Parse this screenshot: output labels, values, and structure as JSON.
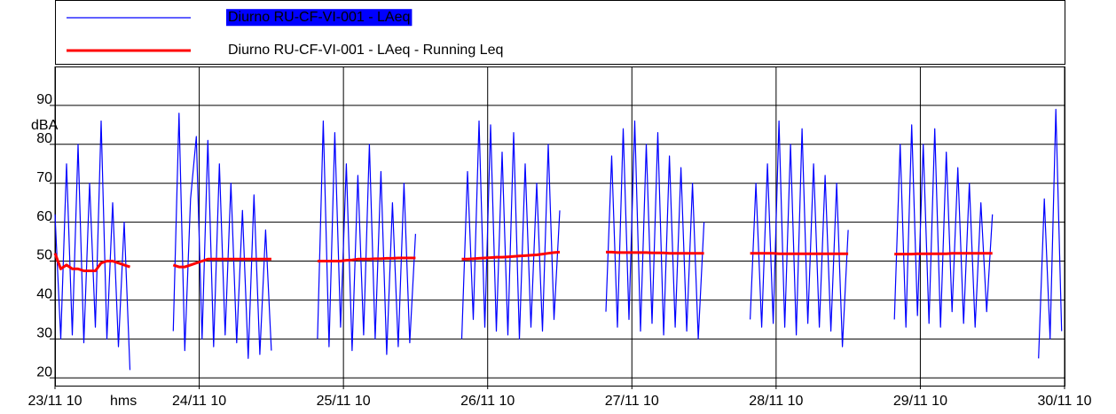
{
  "chart_data": {
    "type": "line",
    "ylabel": "dBA",
    "xlabel": "hms",
    "xlim": [
      0,
      7
    ],
    "ylim": [
      18,
      100
    ],
    "xticks": [
      {
        "value": 0,
        "label": "23/11 10"
      },
      {
        "value": 1,
        "label": "24/11 10"
      },
      {
        "value": 2,
        "label": "25/11 10"
      },
      {
        "value": 3,
        "label": "26/11 10"
      },
      {
        "value": 4,
        "label": "27/11 10"
      },
      {
        "value": 5,
        "label": "28/11 10"
      },
      {
        "value": 6,
        "label": "29/11 10"
      },
      {
        "value": 7,
        "label": "30/11 10"
      }
    ],
    "yticks": [
      20,
      30,
      40,
      50,
      60,
      70,
      80,
      90
    ],
    "grid": true,
    "legend": "top",
    "x": [
      0,
      0.04,
      0.08,
      0.12,
      0.16,
      0.2,
      0.24,
      0.28,
      0.32,
      0.36,
      0.4,
      0.44,
      0.48,
      0.52,
      0.67,
      0.82,
      0.86,
      0.9,
      0.94,
      0.98,
      1.02,
      1.06,
      1.1,
      1.14,
      1.18,
      1.22,
      1.26,
      1.3,
      1.34,
      1.38,
      1.42,
      1.46,
      1.5,
      1.66,
      1.82,
      1.86,
      1.9,
      1.94,
      1.98,
      2.02,
      2.06,
      2.1,
      2.14,
      2.18,
      2.22,
      2.26,
      2.3,
      2.34,
      2.38,
      2.42,
      2.46,
      2.5,
      2.66,
      2.82,
      2.86,
      2.9,
      2.94,
      2.98,
      3.02,
      3.06,
      3.1,
      3.14,
      3.18,
      3.22,
      3.26,
      3.3,
      3.34,
      3.38,
      3.42,
      3.46,
      3.5,
      3.66,
      3.82,
      3.86,
      3.9,
      3.94,
      3.98,
      4.02,
      4.06,
      4.1,
      4.14,
      4.18,
      4.22,
      4.26,
      4.3,
      4.34,
      4.38,
      4.42,
      4.46,
      4.5,
      4.66,
      4.82,
      4.86,
      4.9,
      4.94,
      4.98,
      5.02,
      5.06,
      5.1,
      5.14,
      5.18,
      5.22,
      5.26,
      5.3,
      5.34,
      5.38,
      5.42,
      5.46,
      5.5,
      5.66,
      5.82,
      5.86,
      5.9,
      5.94,
      5.98,
      6.02,
      6.06,
      6.1,
      6.14,
      6.18,
      6.22,
      6.26,
      6.3,
      6.34,
      6.38,
      6.42,
      6.46,
      6.5,
      6.66,
      6.82,
      6.86,
      6.9,
      6.94,
      6.98
    ],
    "series": [
      {
        "name": "Diurno RU-CF-VI-001 - LAeq",
        "color": "#0000ff",
        "values": [
          62,
          30,
          75,
          31,
          80,
          29,
          70,
          33,
          86,
          30,
          65,
          28,
          60,
          22,
          null,
          32,
          88,
          27,
          66,
          82,
          30,
          81,
          28,
          75,
          31,
          70,
          29,
          63,
          25,
          67,
          26,
          58,
          27,
          null,
          30,
          86,
          28,
          83,
          33,
          75,
          27,
          72,
          31,
          80,
          30,
          73,
          26,
          65,
          28,
          70,
          29,
          57,
          null,
          30,
          73,
          35,
          86,
          33,
          85,
          32,
          78,
          31,
          83,
          30,
          75,
          33,
          70,
          32,
          80,
          35,
          63,
          null,
          37,
          77,
          33,
          84,
          35,
          86,
          32,
          80,
          34,
          83,
          31,
          77,
          33,
          74,
          32,
          70,
          30,
          60,
          null,
          35,
          70,
          33,
          75,
          34,
          86,
          33,
          80,
          31,
          84,
          34,
          75,
          33,
          72,
          32,
          70,
          28,
          58,
          null,
          35,
          80,
          33,
          85,
          36,
          80,
          34,
          84,
          33,
          78,
          37,
          74,
          34,
          70,
          33,
          65,
          37,
          62,
          null,
          25,
          66,
          30,
          89,
          32
        ]
      },
      {
        "name": "Diurno RU-CF-VI-001 - LAeq - Running Leq",
        "color": "#ff0000",
        "values": [
          52,
          48,
          49,
          48,
          48,
          47.5,
          47.5,
          47.5,
          49.5,
          50,
          50,
          49.5,
          49,
          48.5,
          null,
          49,
          48.5,
          48.5,
          49,
          49.5,
          50,
          50.5,
          50.5,
          50.5,
          50.5,
          50.5,
          50.5,
          50.5,
          50.5,
          50.5,
          50.5,
          50.5,
          50.5,
          null,
          50,
          50,
          50,
          50,
          50,
          50.2,
          50.3,
          50.5,
          50.5,
          50.5,
          50.6,
          50.6,
          50.7,
          50.7,
          50.8,
          50.8,
          50.8,
          50.8,
          null,
          50.5,
          50.5,
          50.6,
          50.7,
          50.8,
          50.9,
          51,
          51,
          51.1,
          51.2,
          51.3,
          51.4,
          51.5,
          51.6,
          51.8,
          52,
          52.2,
          52.3,
          null,
          52.3,
          52.3,
          52.2,
          52.2,
          52.2,
          52.2,
          52.2,
          52.2,
          52.1,
          52.1,
          52.1,
          52,
          52,
          52,
          52,
          52,
          52,
          52,
          null,
          52,
          52,
          52,
          52,
          52,
          51.9,
          51.9,
          51.9,
          51.9,
          51.9,
          51.9,
          51.9,
          51.9,
          51.9,
          51.9,
          51.9,
          51.9,
          51.9,
          null,
          51.8,
          51.8,
          51.8,
          51.8,
          51.9,
          51.9,
          51.9,
          51.9,
          51.9,
          51.9,
          52,
          52,
          52,
          52,
          52,
          52,
          52,
          52,
          null,
          null,
          null,
          null,
          null,
          null
        ]
      }
    ]
  }
}
